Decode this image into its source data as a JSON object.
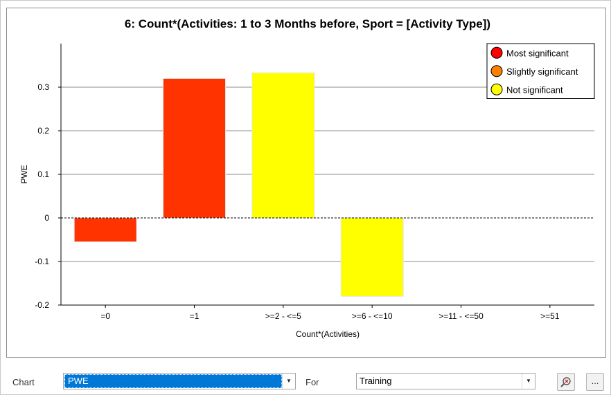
{
  "chart_data": {
    "type": "bar",
    "title": "6: Count*(Activities: 1 to 3 Months before, Sport = [Activity Type])",
    "xlabel": "Count*(Activities)",
    "ylabel": "PWE",
    "categories": [
      "=0",
      "=1",
      ">=2 - <=5",
      ">=6 - <=10",
      ">=11 - <=50",
      ">=51"
    ],
    "values": [
      -0.055,
      0.32,
      0.333,
      -0.18,
      null,
      null
    ],
    "significance": [
      "Most significant",
      "Most significant",
      "Not significant",
      "Not significant",
      null,
      null
    ],
    "ylim": [
      -0.2,
      0.4
    ],
    "yticks": [
      0.3,
      0.2,
      0.1,
      0,
      -0.1,
      -0.2
    ],
    "ytick_labels": [
      "0.3",
      "0.2",
      "0.1",
      "0",
      "-0.1",
      "-0.2"
    ],
    "grid": true,
    "legend_position": "top-right",
    "legend": [
      {
        "label": "Most significant",
        "color": "#ff0000"
      },
      {
        "label": "Slightly significant",
        "color": "#ff8000"
      },
      {
        "label": "Not significant",
        "color": "#ffff00"
      }
    ],
    "bar_colors": {
      "Most significant": "#ff3300",
      "Slightly significant": "#ff8000",
      "Not significant": "#ffff00"
    }
  },
  "controls": {
    "chart_label": "Chart",
    "chart_value": "PWE",
    "for_label": "For",
    "for_value": "Training",
    "more_label": "..."
  }
}
